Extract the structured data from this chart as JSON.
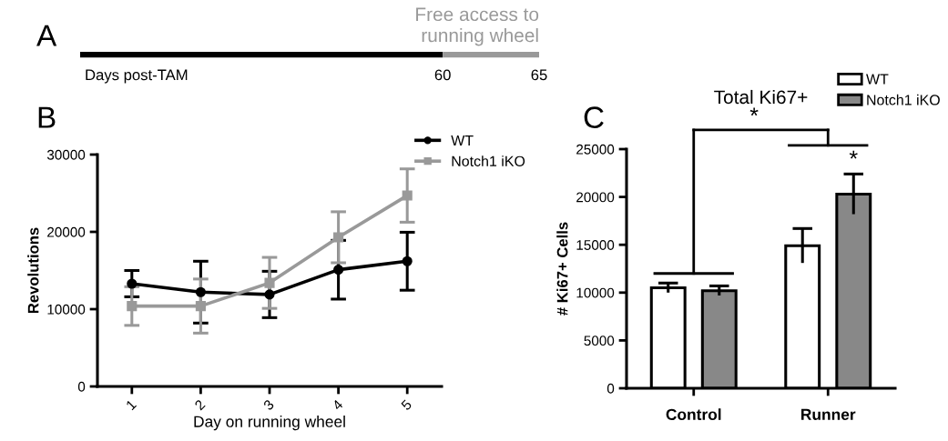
{
  "chart_data": [
    {
      "type": "other",
      "annotations": [
        "A",
        "Free access to\nrunning wheel",
        "60",
        "65"
      ],
      "xlabel": "Days post-TAM",
      "colors": [
        "#000000",
        "#999999"
      ]
    },
    {
      "type": "line",
      "ylabel": "Revolutions",
      "xlabel": "Day on running wheel",
      "x": [
        1,
        2,
        3,
        4,
        5
      ],
      "xlim": [
        0.5,
        5.5
      ],
      "xticks": [
        1,
        2,
        3,
        4,
        5
      ],
      "ylim": [
        0,
        30000
      ],
      "yticks": [
        0,
        10000,
        20000,
        30000
      ],
      "legend": "top right",
      "grid": false,
      "annotations": [
        "B"
      ],
      "series": [
        {
          "name": "WT",
          "color": "#000000",
          "marker": "circle",
          "values": [
            13300,
            12200,
            11900,
            15100,
            16200
          ],
          "errors": [
            1700,
            4000,
            3000,
            3800,
            3750
          ]
        },
        {
          "name": "Notch1 iKO",
          "color": "#999999",
          "marker": "square",
          "values": [
            10400,
            10400,
            13400,
            19300,
            24700
          ],
          "errors": [
            2500,
            3500,
            3300,
            3300,
            3450
          ]
        }
      ]
    },
    {
      "type": "bar",
      "title": "Total Ki67+",
      "ylabel": "# Ki67+ Cells",
      "categories": [
        "Control",
        "Runner"
      ],
      "ylim": [
        0,
        25000
      ],
      "yticks": [
        0,
        5000,
        10000,
        15000,
        20000,
        25000
      ],
      "legend": "top right",
      "grid": false,
      "annotations": [
        "C",
        "*",
        "*"
      ],
      "series": [
        {
          "name": "WT",
          "color": "#ffffff",
          "values": [
            10500,
            14900
          ],
          "errors": [
            500,
            1800
          ]
        },
        {
          "name": "Notch1 iKO",
          "color": "#888888",
          "values": [
            10200,
            20300
          ],
          "errors": [
            500,
            2100
          ]
        }
      ]
    }
  ]
}
